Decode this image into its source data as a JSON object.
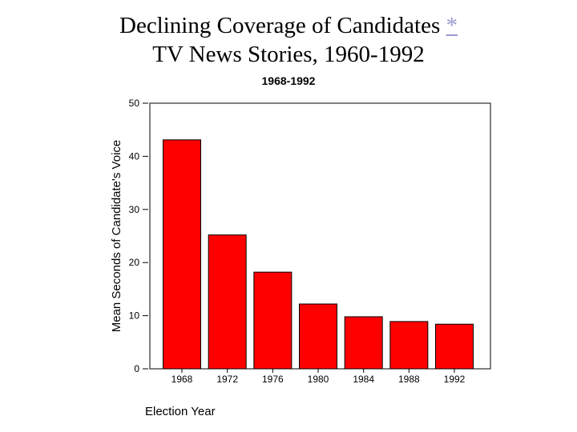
{
  "page": {
    "title_line1": "Declining Coverage of Candidates",
    "title_link": "*",
    "title_line2": "TV News Stories, 1960-1992"
  },
  "chart_data": {
    "type": "bar",
    "title": "1968-1992",
    "xlabel": "Election Year",
    "ylabel": "Mean Seconds of Candidate's Voice",
    "categories": [
      "1968",
      "1972",
      "1976",
      "1980",
      "1984",
      "1988",
      "1992"
    ],
    "values": [
      43.1,
      25.2,
      18.2,
      12.2,
      9.8,
      8.9,
      8.4
    ],
    "ylim": [
      0,
      50
    ],
    "yticks": [
      0,
      10,
      20,
      30,
      40,
      50
    ],
    "grid": false,
    "legend": "none",
    "bar_color": "#ff0000",
    "bar_edge_color": "#000000"
  }
}
